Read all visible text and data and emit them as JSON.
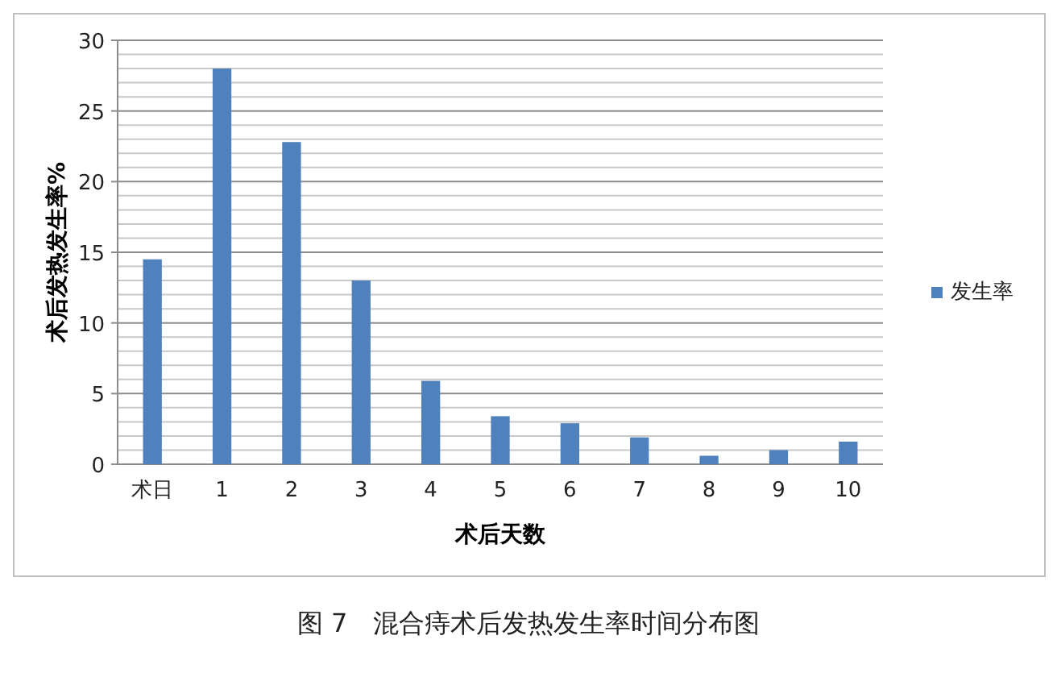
{
  "chart_data": {
    "type": "bar",
    "xlabel": "术后天数",
    "ylabel": "术后发热发生率%",
    "annotations": [
      "图 7　混合痔术后发热发生率时间分布图"
    ],
    "categories": [
      "术日",
      "1",
      "2",
      "3",
      "4",
      "5",
      "6",
      "7",
      "8",
      "9",
      "10"
    ],
    "series": [
      {
        "name": "发生率",
        "color": "#4f81bd",
        "values": [
          14.5,
          28,
          22.8,
          13,
          5.9,
          3.4,
          2.9,
          1.9,
          0.6,
          1.0,
          1.6
        ]
      }
    ],
    "ylim": [
      0,
      30
    ],
    "yticks": [
      0,
      {
        "value": 1,
        "label": null
      },
      {
        "value": 2,
        "label": null
      },
      {
        "value": 3,
        "label": null
      },
      {
        "value": 4,
        "label": null
      },
      5,
      {
        "value": 6,
        "label": null
      },
      {
        "value": 7,
        "label": null
      },
      {
        "value": 8,
        "label": null
      },
      {
        "value": 9,
        "label": null
      },
      10,
      {
        "value": 11,
        "label": null
      },
      {
        "value": 12,
        "label": null
      },
      {
        "value": 13,
        "label": null
      },
      {
        "value": 14,
        "label": null
      },
      15,
      {
        "value": 16,
        "label": null
      },
      {
        "value": 17,
        "label": null
      },
      {
        "value": 18,
        "label": null
      },
      {
        "value": 19,
        "label": null
      },
      20,
      {
        "value": 21,
        "label": null
      },
      {
        "value": 22,
        "label": null
      },
      {
        "value": 23,
        "label": null
      },
      {
        "value": 24,
        "label": null
      },
      25,
      {
        "value": 26,
        "label": null
      },
      {
        "value": 27,
        "label": null
      },
      {
        "value": 28,
        "label": null
      },
      {
        "value": 29,
        "label": null
      },
      30
    ],
    "grid": "y",
    "legend": "right"
  }
}
